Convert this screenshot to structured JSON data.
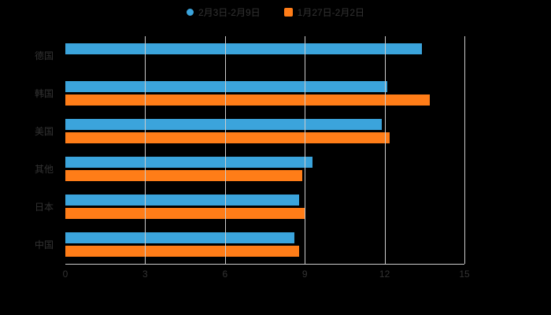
{
  "background": "#000000",
  "text_color": "#333333",
  "grid_color": "#cccccc",
  "legend": {
    "items": [
      {
        "label": "2月3日-2月9日",
        "marker": "circle",
        "color": "#3BA4DC"
      },
      {
        "label": "1月27日-2月2日",
        "marker": "square",
        "color": "#FF7D18"
      }
    ],
    "position": "top-center"
  },
  "chart_data": {
    "type": "bar",
    "orientation": "horizontal",
    "title": "",
    "xlabel": "",
    "ylabel": "",
    "categories": [
      "德国",
      "韩国",
      "美国",
      "其他",
      "日本",
      "中国"
    ],
    "series": [
      {
        "name": "2月3日-2月9日",
        "color": "#3BA4DC",
        "values": [
          13.4,
          12.1,
          11.9,
          9.3,
          8.8,
          8.6
        ]
      },
      {
        "name": "1月27日-2月2日",
        "color": "#FF7D18",
        "values": [
          0,
          13.7,
          12.2,
          8.9,
          9.0,
          8.8
        ]
      }
    ],
    "xlim": [
      0,
      15
    ],
    "x_ticks": [
      0,
      3,
      6,
      9,
      12,
      15
    ],
    "grid": true,
    "legend_position": "top"
  }
}
